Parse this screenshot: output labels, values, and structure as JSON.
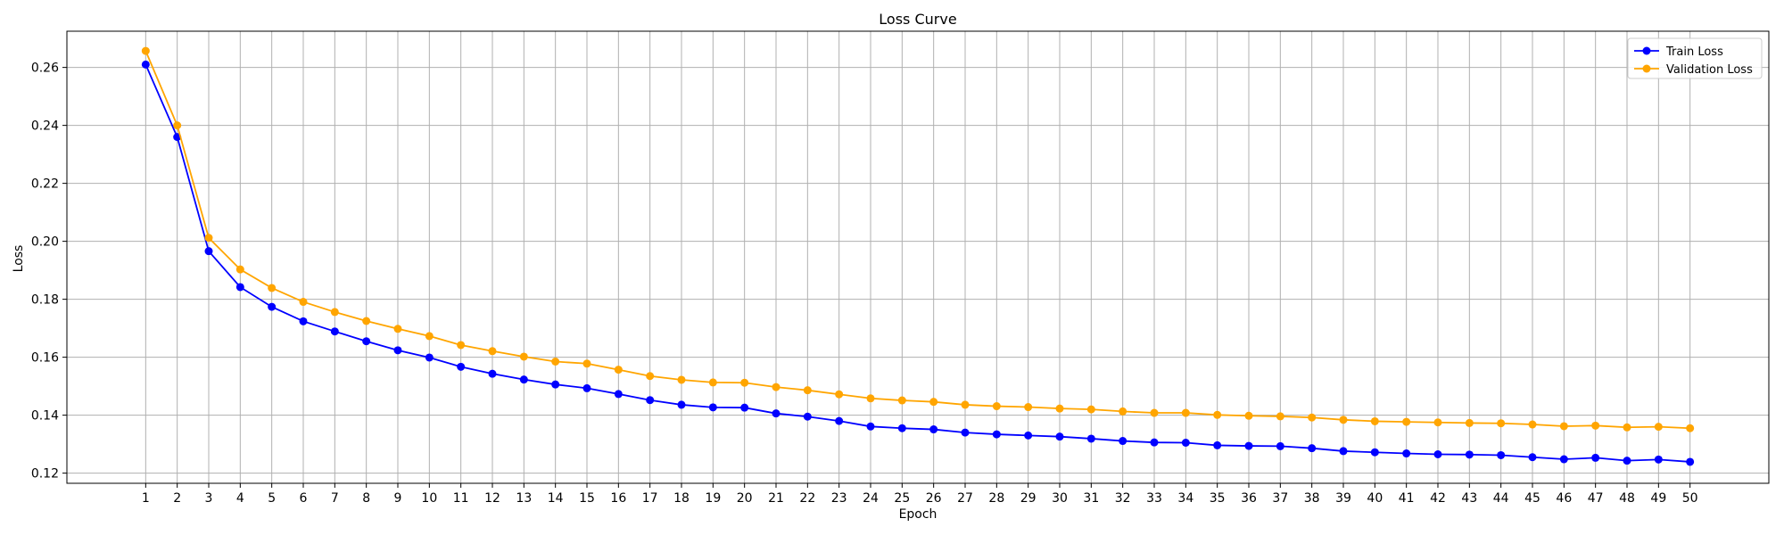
{
  "chart_data": {
    "type": "line",
    "title": "Loss Curve",
    "xlabel": "Epoch",
    "ylabel": "Loss",
    "x": [
      1,
      2,
      3,
      4,
      5,
      6,
      7,
      8,
      9,
      10,
      11,
      12,
      13,
      14,
      15,
      16,
      17,
      18,
      19,
      20,
      21,
      22,
      23,
      24,
      25,
      26,
      27,
      28,
      29,
      30,
      31,
      32,
      33,
      34,
      35,
      36,
      37,
      38,
      39,
      40,
      41,
      42,
      43,
      44,
      45,
      46,
      47,
      48,
      49,
      50
    ],
    "xlim": [
      -1.5,
      52.5
    ],
    "ylim": [
      0.1165,
      0.2725
    ],
    "yticks": [
      0.12,
      0.14,
      0.16,
      0.18,
      0.2,
      0.22,
      0.24,
      0.26
    ],
    "ytick_labels": [
      "0.12",
      "0.14",
      "0.16",
      "0.18",
      "0.20",
      "0.22",
      "0.24",
      "0.26"
    ],
    "grid": true,
    "legend_position": "top-right",
    "series": [
      {
        "name": "Train Loss",
        "color": "#0000ff",
        "marker": "circle",
        "values": [
          0.261,
          0.236,
          0.1966,
          0.1842,
          0.1774,
          0.1724,
          0.1689,
          0.1655,
          0.1624,
          0.1599,
          0.1567,
          0.1543,
          0.1523,
          0.1506,
          0.1493,
          0.1473,
          0.1452,
          0.1436,
          0.1427,
          0.1426,
          0.1406,
          0.1395,
          0.138,
          0.1361,
          0.1355,
          0.1351,
          0.134,
          0.1334,
          0.133,
          0.1326,
          0.1319,
          0.1311,
          0.1306,
          0.1305,
          0.1296,
          0.1294,
          0.1293,
          0.1286,
          0.1276,
          0.1272,
          0.1268,
          0.1265,
          0.1264,
          0.1262,
          0.1255,
          0.1248,
          0.1253,
          0.1243,
          0.1247,
          0.1239
        ]
      },
      {
        "name": "Validation Loss",
        "color": "#ffa500",
        "marker": "circle",
        "values": [
          0.2657,
          0.24,
          0.2012,
          0.1903,
          0.1839,
          0.1791,
          0.1756,
          0.1725,
          0.1698,
          0.1673,
          0.1642,
          0.1621,
          0.1602,
          0.1585,
          0.1578,
          0.1557,
          0.1535,
          0.1522,
          0.1513,
          0.1512,
          0.1497,
          0.1486,
          0.1472,
          0.1458,
          0.1451,
          0.1446,
          0.1436,
          0.1431,
          0.1428,
          0.1423,
          0.142,
          0.1413,
          0.1408,
          0.1408,
          0.1401,
          0.1398,
          0.1396,
          0.1392,
          0.1384,
          0.1379,
          0.1377,
          0.1375,
          0.1373,
          0.1372,
          0.1368,
          0.1362,
          0.1364,
          0.1358,
          0.136,
          0.1355
        ]
      }
    ]
  }
}
